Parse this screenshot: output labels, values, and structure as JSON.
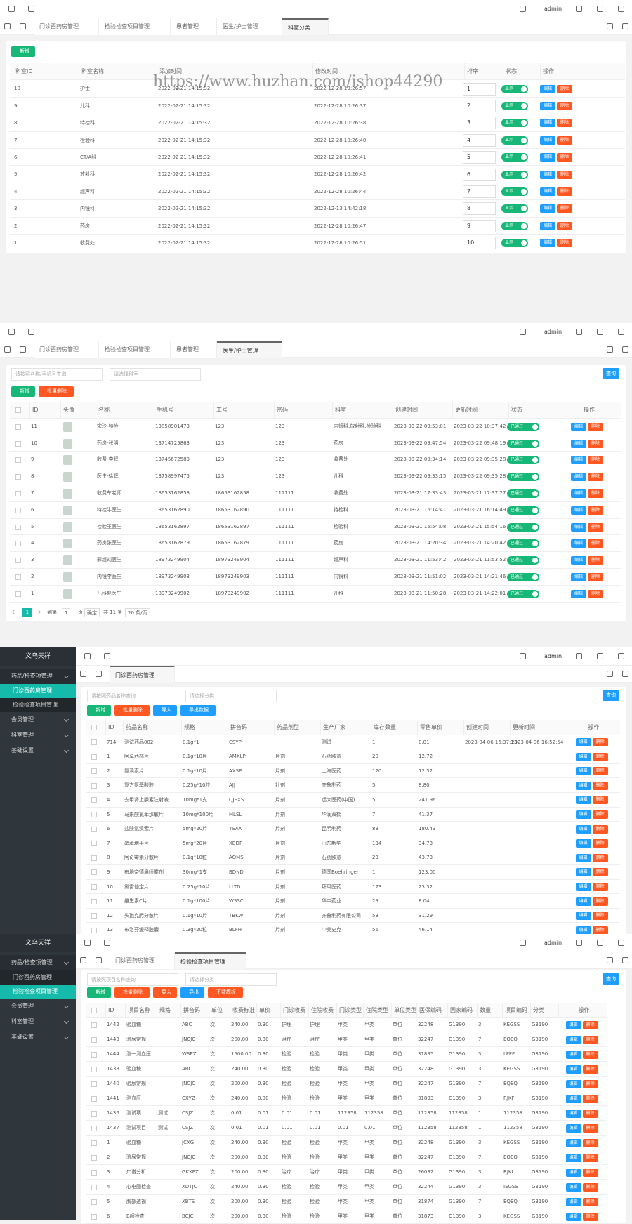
{
  "watermark": "https://www.huzhan.com/ishop44290",
  "panels": [
    {
      "header": {
        "user": "admin"
      },
      "tabs": [
        {
          "label": "门诊西药房管理"
        },
        {
          "label": "检验检查项目管理"
        },
        {
          "label": "患者管理"
        },
        {
          "label": "医生/护士管理"
        },
        {
          "label": "科室分类",
          "active": true
        }
      ],
      "buttons": [
        {
          "label": "新增",
          "color": "green"
        }
      ],
      "table": {
        "checkbox": false,
        "actions": [
          "编辑",
          "删除"
        ],
        "columns": [
          {
            "label": "科室ID"
          },
          {
            "label": "科室名称"
          },
          {
            "label": "添加时间"
          },
          {
            "label": "修改时间"
          },
          {
            "label": "排序",
            "kind": "input"
          },
          {
            "label": "状态",
            "kind": "switch"
          },
          {
            "label": "操作",
            "kind": "actions"
          }
        ],
        "rows": [
          [
            "10",
            "护士",
            "2022-02-21 14:15:32",
            "2022-12-28 10:26:57",
            "1",
            "显示"
          ],
          [
            "9",
            "儿科",
            "2022-02-21 14:15:32",
            "2022-12-28 10:26:37",
            "2",
            "显示"
          ],
          [
            "8",
            "特检科",
            "2022-02-21 14:15:32",
            "2022-12-28 10:26:38",
            "3",
            "显示"
          ],
          [
            "7",
            "检验科",
            "2022-02-21 14:15:32",
            "2022-12-28 10:26:40",
            "4",
            "显示"
          ],
          [
            "6",
            "CT/A科",
            "2022-02-21 14:15:32",
            "2022-12-28 10:26:41",
            "5",
            "显示"
          ],
          [
            "5",
            "放射科",
            "2022-02-21 14:15:32",
            "2022-12-28 10:26:42",
            "6",
            "显示"
          ],
          [
            "4",
            "超声科",
            "2022-02-21 14:15:32",
            "2022-12-28 10:26:44",
            "7",
            "显示"
          ],
          [
            "3",
            "内镜科",
            "2022-02-21 14:15:32",
            "2022-12-13 14:42:18",
            "8",
            "显示"
          ],
          [
            "2",
            "药房",
            "2022-02-21 14:15:32",
            "2022-12-28 10:26:47",
            "9",
            "显示"
          ],
          [
            "1",
            "收费处",
            "2022-02-21 14:15:32",
            "2022-12-28 10:26:51",
            "10",
            "显示"
          ]
        ]
      }
    },
    {
      "header": {
        "user": "admin"
      },
      "tabs": [
        {
          "label": "门诊西药房管理"
        },
        {
          "label": "检验检查项目管理"
        },
        {
          "label": "患者管理"
        },
        {
          "label": "医生/护士管理",
          "active": true
        }
      ],
      "search": {
        "inputs": [
          "请按照名称/手机号查询",
          "请选择科室"
        ],
        "button": "查询"
      },
      "buttons": [
        {
          "label": "新增",
          "color": "green"
        },
        {
          "label": "批量删除",
          "color": "red"
        }
      ],
      "table": {
        "checkbox": true,
        "actions": [
          "编辑",
          "删除"
        ],
        "columns": [
          {
            "label": "ID"
          },
          {
            "label": "头像",
            "kind": "avatar"
          },
          {
            "label": "名称"
          },
          {
            "label": "手机号"
          },
          {
            "label": "工号"
          },
          {
            "label": "密码"
          },
          {
            "label": "科室"
          },
          {
            "label": "创建时间"
          },
          {
            "label": "更新时间"
          },
          {
            "label": "状态",
            "kind": "switch"
          },
          {
            "label": "操作",
            "kind": "actions"
          }
        ],
        "rows": [
          [
            "11",
            null,
            "宋玲-特检",
            "13858901473",
            "123",
            "123",
            "内镜科,放射科,检验科",
            "2023-03-22 09:53:01",
            "2023-03-22 10:37:42",
            "已通过"
          ],
          [
            "10",
            null,
            "药房-张明",
            "13714725863",
            "123",
            "123",
            "药房",
            "2023-03-22 09:47:54",
            "2023-03-22 09:48:19",
            "已通过"
          ],
          [
            "9",
            null,
            "收费-李程",
            "13745672583",
            "123",
            "123",
            "收费处",
            "2023-03-22 09:34:14",
            "2023-03-22 09:35:28",
            "已通过"
          ],
          [
            "8",
            null,
            "医生-徐辉",
            "13758997475",
            "123",
            "123",
            "儿科",
            "2023-03-22 09:33:15",
            "2023-03-22 09:35:28",
            "已通过"
          ],
          [
            "7",
            null,
            "收费车老师",
            "18653162858",
            "18653162858",
            "111111",
            "收费处",
            "2023-03-21 17:33:43",
            "2023-03-21 17:37:27",
            "已通过"
          ],
          [
            "6",
            null,
            "特检牛医生",
            "18653162890",
            "18653162890",
            "111111",
            "特检科",
            "2023-03-21 16:14:41",
            "2023-03-21 16:14:49",
            "已通过"
          ],
          [
            "5",
            null,
            "检验王医生",
            "18653162897",
            "18653162897",
            "111111",
            "检验科",
            "2023-03-21 15:54:08",
            "2023-03-21 15:54:16",
            "已通过"
          ],
          [
            "4",
            null,
            "药房张医生",
            "18653162879",
            "18653162879",
            "111111",
            "药房",
            "2023-03-21 14:20:34",
            "2023-03-21 14:20:42",
            "已通过"
          ],
          [
            "3",
            null,
            "彩超刘医生",
            "18973249904",
            "18973249904",
            "111111",
            "超声科",
            "2023-03-21 11:53:42",
            "2023-03-21 11:53:52",
            "已通过"
          ],
          [
            "2",
            null,
            "内镜李医生",
            "18973249903",
            "18973249903",
            "111111",
            "内镜科",
            "2023-03-21 11:51:02",
            "2023-03-21 14:21:46",
            "已通过"
          ],
          [
            "1",
            null,
            "儿科赵医生",
            "18973249902",
            "18973249902",
            "111111",
            "儿科",
            "2023-03-21 11:50:28",
            "2023-03-21 14:22:01",
            "已通过"
          ]
        ]
      },
      "pagination": {
        "page": "1",
        "goto_prefix": "到第",
        "goto_page": "1",
        "goto_suffix": "页",
        "confirm": "确定",
        "total": "共 11 条",
        "page_size": "20 条/页"
      }
    },
    {
      "sidebar": {
        "brand": "义乌天祥",
        "menu": [
          {
            "label": "药品/检查项管理",
            "open": true,
            "children": [
              {
                "label": "门诊西药房管理",
                "active": true
              },
              {
                "label": "检验检查项目管理"
              }
            ]
          },
          {
            "label": "会员管理"
          },
          {
            "label": "科室管理"
          },
          {
            "label": "基础设置"
          }
        ]
      },
      "header": {
        "user": "admin"
      },
      "tabs": [
        {
          "label": "门诊西药房管理",
          "active": true
        }
      ],
      "search": {
        "inputs": [
          "请按照药品名称查询",
          "请选择分类"
        ],
        "button": "查询"
      },
      "buttons": [
        {
          "label": "新增",
          "color": "green"
        },
        {
          "label": "批量删除",
          "color": "red"
        },
        {
          "label": "导入",
          "color": "blue"
        },
        {
          "label": "导出数据",
          "color": "blue"
        }
      ],
      "table": {
        "checkbox": true,
        "actions": [
          "编辑",
          "删除"
        ],
        "columns": [
          {
            "label": "ID"
          },
          {
            "label": "药品名称"
          },
          {
            "label": "规格"
          },
          {
            "label": "拼音码"
          },
          {
            "label": "药品剂型"
          },
          {
            "label": "生产厂家"
          },
          {
            "label": "库存数量"
          },
          {
            "label": "零售单价"
          },
          {
            "label": "创建时间"
          },
          {
            "label": "更新时间"
          },
          {
            "label": "操作",
            "kind": "actions"
          }
        ],
        "rows": [
          [
            "714",
            "测试药品002",
            "0.1g*1",
            "CSYP",
            null,
            "测试",
            "1",
            "0.01",
            "2023-04-06 16:37:13",
            "2023-04-06 16:52:54"
          ],
          [
            "1",
            "阿莫西林片",
            "0.1g*10片",
            "AMXLP",
            "片剂",
            "石药欧意",
            "20",
            "12.72",
            null,
            null
          ],
          [
            "2",
            "氨溴索片",
            "0.1g*10片",
            "AXSP",
            "片剂",
            "上海医药",
            "120",
            "12.32",
            null,
            null
          ],
          [
            "3",
            "复方氨基酸胶",
            "0.25g*10粒",
            "AJJ",
            "针剂",
            "齐鲁制药",
            "5",
            "8.80",
            null,
            null
          ],
          [
            "4",
            "去甲肾上腺素注射液",
            "10mg*1支",
            "QJSXS",
            "片剂",
            "远大医药(中国)",
            "5",
            "241.96",
            null,
            null
          ],
          [
            "5",
            "马来酸氯苯那敏片",
            "10mg*100片",
            "MLSL",
            "片剂",
            "华润双鹤",
            "7",
            "41.37",
            null,
            null
          ],
          [
            "6",
            "盐酸氨溴索片",
            "5mg*20片",
            "YSAX",
            "片剂",
            "昆明制药",
            "83",
            "180.43",
            null,
            null
          ],
          [
            "7",
            "硝苯地平片",
            "5mg*20片",
            "XBDP",
            "片剂",
            "山东新华",
            "134",
            "34.73",
            null,
            null
          ],
          [
            "8",
            "阿奇霉素分散片",
            "0.1g*10粒",
            "AQMS",
            "片剂",
            "石药欧意",
            "23",
            "43.73",
            null,
            null
          ],
          [
            "9",
            "布地奈德鼻喷雾剂",
            "30mg*1支",
            "BDND",
            "片剂",
            "德国Boehringer",
            "1",
            "123.00",
            null,
            null
          ],
          [
            "10",
            "氯雷他定片",
            "0.25g*10片",
            "LLTD",
            "片剂",
            "拜耳医药",
            "173",
            "23.32",
            null,
            null
          ],
          [
            "11",
            "维生素C片",
            "0.1g*100片",
            "WSSC",
            "片剂",
            "华中药业",
            "29",
            "8.04",
            null,
            null
          ],
          [
            "12",
            "头孢克肟分散片",
            "0.1g*10片",
            "TBKW",
            "片剂",
            "齐鲁制药有限公司",
            "53",
            "31.29",
            null,
            null
          ],
          [
            "13",
            "布洛芬缓释胶囊",
            "0.3g*20粒",
            "BLFH",
            "片剂",
            "中美史克",
            "56",
            "46.14",
            null,
            null
          ]
        ]
      }
    },
    {
      "sidebar": {
        "brand": "义乌天祥",
        "menu": [
          {
            "label": "药品/检查项管理",
            "open": true,
            "children": [
              {
                "label": "门诊西药房管理"
              },
              {
                "label": "检验检查项目管理",
                "active": true
              }
            ]
          },
          {
            "label": "会员管理"
          },
          {
            "label": "科室管理"
          },
          {
            "label": "基础设置"
          }
        ]
      },
      "header": {
        "user": "admin"
      },
      "tabs": [
        {
          "label": "门诊西药房管理"
        },
        {
          "label": "检验检查项目管理",
          "active": true
        }
      ],
      "search": {
        "inputs": [
          "请按照项目名称查询",
          "请选择分类"
        ],
        "button": "查询"
      },
      "buttons": [
        {
          "label": "新增",
          "color": "green"
        },
        {
          "label": "批量删除",
          "color": "red"
        },
        {
          "label": "导入",
          "color": "red"
        },
        {
          "label": "导出",
          "color": "blue"
        },
        {
          "label": "下载模板",
          "color": "red"
        }
      ],
      "table": {
        "checkbox": true,
        "actions": [
          "编辑",
          "删除"
        ],
        "columns": [
          {
            "label": "ID"
          },
          {
            "label": "项目名称"
          },
          {
            "label": "规格"
          },
          {
            "label": "拼音码"
          },
          {
            "label": "单位"
          },
          {
            "label": "收费标准"
          },
          {
            "label": "单价"
          },
          {
            "label": "门诊收费"
          },
          {
            "label": "住院收费"
          },
          {
            "label": "门诊类型"
          },
          {
            "label": "住院类型"
          },
          {
            "label": "单位类型"
          },
          {
            "label": "医保编码"
          },
          {
            "label": "国家编码"
          },
          {
            "label": "数量"
          },
          {
            "label": "项目编码"
          },
          {
            "label": "分类"
          },
          {
            "label": "操作",
            "kind": "actions"
          }
        ],
        "rows": [
          [
            "1442",
            "验血糖",
            null,
            "ABC",
            "次",
            "240.00",
            "0.30",
            "护理",
            "护理",
            "甲类",
            "甲类",
            "单位",
            "32248",
            "G1390",
            "3",
            "KEGSS",
            "G3190"
          ],
          [
            "1443",
            "验尿常规",
            null,
            "JNCJC",
            "次",
            "200.00",
            "0.30",
            "治疗",
            "治疗",
            "甲类",
            "甲类",
            "单位",
            "32247",
            "G1390",
            "7",
            "EQEQ",
            "G3190"
          ],
          [
            "1444",
            "测一测血压",
            null,
            "WSEZ",
            "次",
            "1500.00",
            "0.30",
            "检验",
            "检验",
            "甲类",
            "甲类",
            "单位",
            "31895",
            "G1390",
            "3",
            "LFFF",
            "G3190"
          ],
          [
            "1438",
            "验血糖",
            null,
            "ABC",
            "次",
            "240.00",
            "0.30",
            "检验",
            "检验",
            "甲类",
            "甲类",
            "单位",
            "32248",
            "G1390",
            "3",
            "KEGSS",
            "G3190"
          ],
          [
            "1440",
            "验尿常规",
            null,
            "JNCJC",
            "次",
            "200.00",
            "0.30",
            "检验",
            "检验",
            "甲类",
            "甲类",
            "单位",
            "32247",
            "G1390",
            "7",
            "EQEQ",
            "G3190"
          ],
          [
            "1441",
            "测血压",
            null,
            "CXYZ",
            "次",
            "240.00",
            "0.30",
            "检验",
            "检验",
            "甲类",
            "甲类",
            "单位",
            "31893",
            "G1390",
            "3",
            "RJKF",
            "G3190"
          ],
          [
            "1436",
            "测试项",
            "测试",
            "CSJZ",
            "次",
            "0.01",
            "0.01",
            "0.01",
            "0.01",
            "112358",
            "112358",
            "单位",
            "112358",
            "112358",
            "1",
            "112358",
            "G3190"
          ],
          [
            "1437",
            "测试项目",
            "测试",
            "CSJZ",
            "次",
            "0.01",
            "0.01",
            "0.01",
            "0.01",
            "0.01",
            "0.01",
            "单位",
            "112358",
            "112358",
            "1",
            "112358",
            "G3190"
          ],
          [
            "1",
            "验血糖",
            null,
            "JCXG",
            "次",
            "240.00",
            "0.30",
            "检验",
            "检验",
            "甲类",
            "甲类",
            "单位",
            "32248",
            "G1390",
            "3",
            "KEGSS",
            "G3190"
          ],
          [
            "2",
            "验尿常规",
            null,
            "JNCJC",
            "次",
            "200.00",
            "0.30",
            "检验",
            "检验",
            "甲类",
            "甲类",
            "单位",
            "32247",
            "G1390",
            "7",
            "EQEQ",
            "G3190"
          ],
          [
            "3",
            "广谱分析",
            null,
            "GKXFZ",
            "次",
            "200.00",
            "0.30",
            "治疗",
            "治疗",
            "甲类",
            "甲类",
            "单位",
            "26032",
            "G1390",
            "3",
            "RJKL",
            "G3190"
          ],
          [
            "4",
            "心电图检查",
            null,
            "XDTJC",
            "次",
            "240.00",
            "0.30",
            "检验",
            "检验",
            "甲类",
            "甲类",
            "单位",
            "32244",
            "G1390",
            "3",
            "IEGSS",
            "G3190"
          ],
          [
            "5",
            "胸部透视",
            null,
            "XBTS",
            "次",
            "200.00",
            "0.30",
            "检验",
            "检验",
            "甲类",
            "甲类",
            "单位",
            "31874",
            "G1390",
            "7",
            "EQEQ",
            "G3190"
          ],
          [
            "6",
            "B超检查",
            null,
            "BCJC",
            "次",
            "200.00",
            "0.30",
            "检验",
            "检验",
            "甲类",
            "甲类",
            "单位",
            "31873",
            "G1390",
            "3",
            "KEGSS",
            "G3190"
          ]
        ]
      }
    }
  ]
}
